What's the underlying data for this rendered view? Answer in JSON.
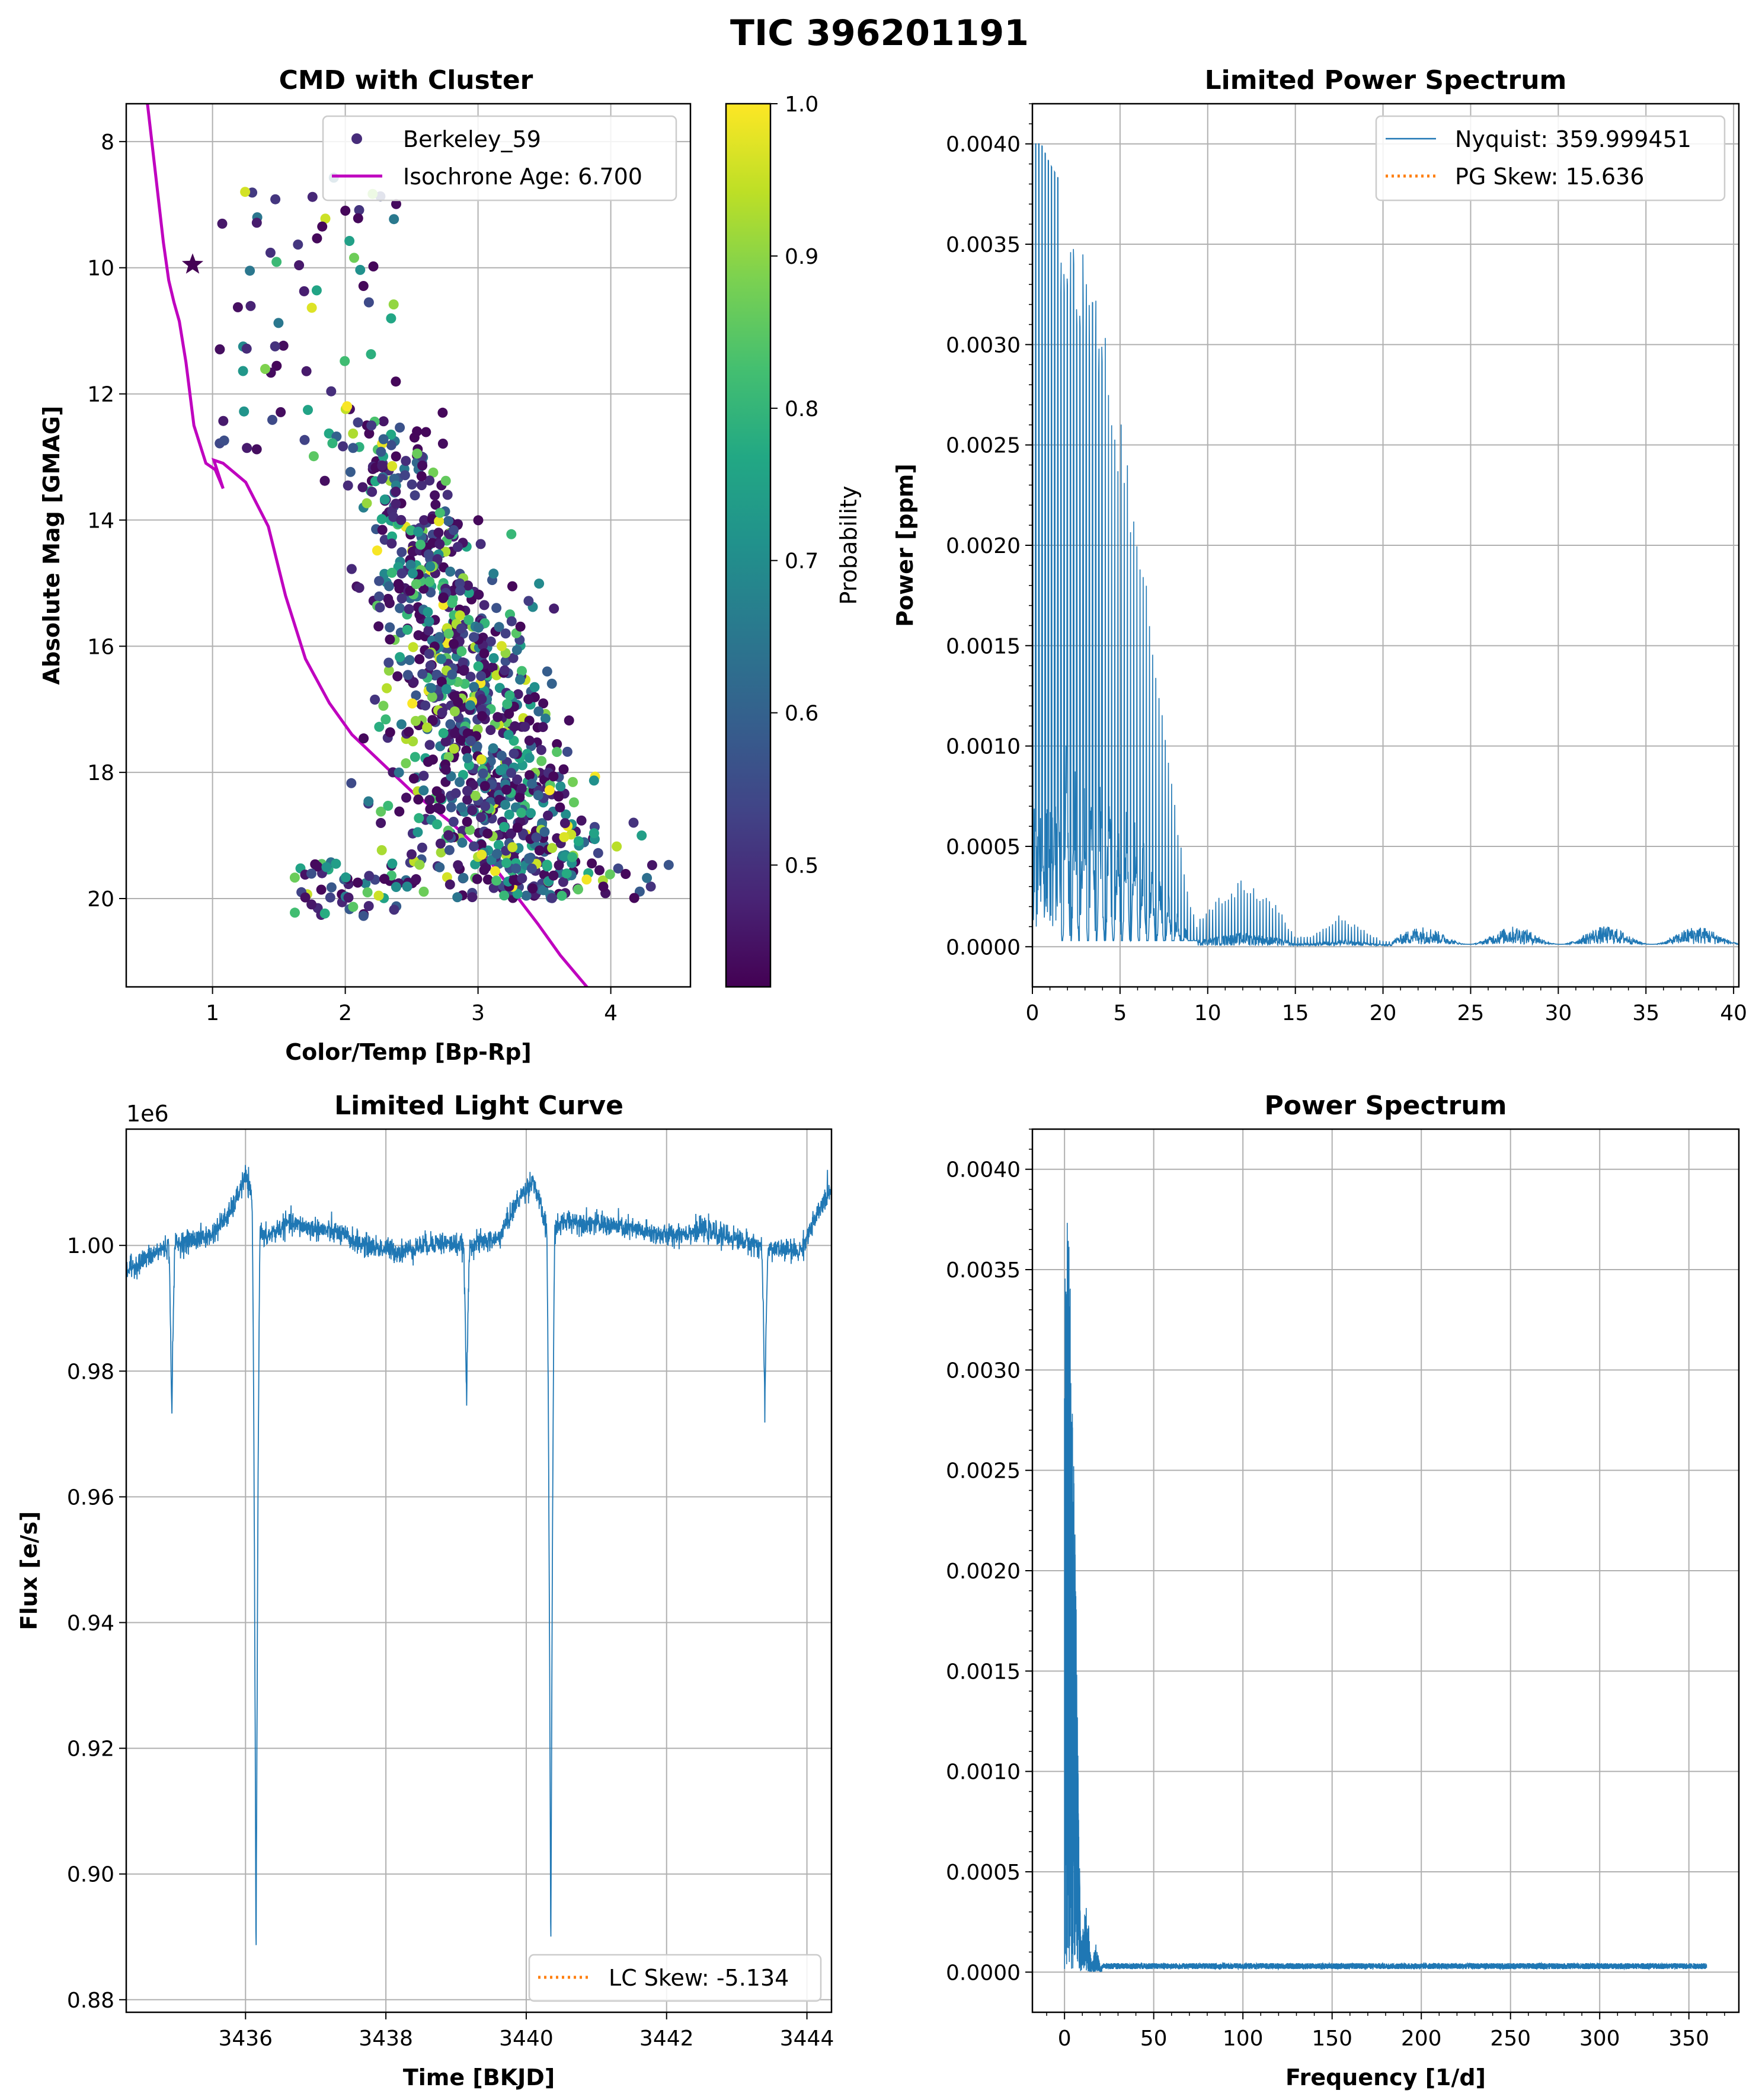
{
  "figure": {
    "title": "TIC 396201191"
  },
  "chart_data": [
    {
      "id": "cmd",
      "type": "scatter",
      "title": "CMD with Cluster",
      "xlabel": "Color/Temp [Bp-Rp]",
      "ylabel": "Absolute Mag [GMAG]",
      "xlim": [
        0.35,
        4.6
      ],
      "ylim": [
        21.4,
        7.4
      ],
      "y_inverted": true,
      "xticks": [
        1,
        2,
        3,
        4
      ],
      "yticks": [
        8,
        10,
        12,
        14,
        16,
        18,
        20
      ],
      "grid": true,
      "legend": {
        "position": "top-right",
        "entries": [
          {
            "label": "Berkeley_59",
            "marker": "dot",
            "color": "#472c7a"
          },
          {
            "label": "Isochrone Age: 6.700",
            "marker": "line",
            "color": "#bf00bf"
          }
        ]
      },
      "colorbar": {
        "label": "Probability",
        "min": 0.42,
        "max": 1.0,
        "ticks": [
          0.5,
          0.6,
          0.7,
          0.8,
          0.9,
          1.0
        ],
        "colormap": "viridis"
      },
      "target_star": {
        "x": 0.85,
        "y": 9.95,
        "marker": "star"
      },
      "isochrone": {
        "x": [
          0.51,
          0.57,
          0.63,
          0.67,
          0.71,
          0.75,
          0.8,
          0.86,
          0.95,
          1.02,
          1.08,
          1.01,
          1.08,
          1.25,
          1.42,
          1.55,
          1.7,
          1.88,
          2.05,
          2.25,
          2.5,
          2.8,
          3.05,
          3.25,
          3.45,
          3.62,
          3.8,
          3.9
        ],
        "y": [
          7.4,
          8.5,
          9.6,
          10.2,
          10.55,
          10.85,
          11.5,
          12.5,
          13.1,
          13.2,
          13.5,
          13.05,
          13.1,
          13.4,
          14.1,
          15.2,
          16.2,
          16.9,
          17.4,
          17.8,
          18.3,
          18.8,
          19.3,
          19.85,
          20.4,
          20.9,
          21.35,
          21.6
        ]
      },
      "n_points": 1100
    },
    {
      "id": "limited_ps",
      "type": "line",
      "title": "Limited Power Spectrum",
      "ylabel": "Power [ppm]",
      "xlim": [
        0,
        40.3
      ],
      "ylim": [
        -0.0002,
        0.0042
      ],
      "xticks": [
        0,
        5,
        10,
        15,
        20,
        25,
        30,
        35,
        40
      ],
      "yticks": [
        0.0,
        0.0005,
        0.001,
        0.0015,
        0.002,
        0.0025,
        0.003,
        0.0035,
        0.004
      ],
      "grid": true,
      "color": "#1f77b4",
      "legend": {
        "position": "top-right",
        "entries": [
          {
            "label": "Nyquist: 359.999451",
            "style": "solid",
            "color": "#1f77b4"
          },
          {
            "label": "PG Skew: 15.636",
            "style": "dotted",
            "color": "#ff7f0e"
          }
        ]
      },
      "peak_envelope": {
        "x": [
          0,
          0.5,
          1,
          2,
          3,
          4,
          5,
          6,
          7,
          8,
          8.8,
          9.4
        ],
        "y": [
          0.004,
          0.004,
          0.0039,
          0.00375,
          0.0035,
          0.0031,
          0.0027,
          0.0022,
          0.0015,
          0.0008,
          0.0003,
          0.0001
        ]
      },
      "bump_envelope": {
        "x": [
          9,
          10,
          12,
          14,
          15,
          16,
          17.5,
          19,
          20
        ],
        "y": [
          0.0001,
          0.0002,
          0.00034,
          0.0002,
          5e-05,
          6e-05,
          0.00016,
          8e-05,
          3e-05
        ]
      }
    },
    {
      "id": "light_curve",
      "type": "line",
      "title": "Limited Light Curve",
      "xlabel": "Time [BKJD]",
      "ylabel": "Flux [e/s]",
      "offset_label": "1e6",
      "xlim": [
        3434.3,
        3444.35
      ],
      "ylim": [
        0.878,
        1.0185
      ],
      "xticks": [
        3436,
        3438,
        3440,
        3442,
        3444
      ],
      "yticks": [
        0.88,
        0.9,
        0.92,
        0.94,
        0.96,
        0.98,
        1.0
      ],
      "grid": true,
      "color": "#1f77b4",
      "legend": {
        "position": "bottom-right",
        "entries": [
          {
            "label": "LC Skew: -5.134",
            "style": "dotted",
            "color": "#ff7f0e"
          }
        ]
      },
      "baseline": {
        "x": [
          3434.3,
          3434.9,
          3435.5,
          3435.8,
          3436.0,
          3436.25,
          3436.6,
          3437.3,
          3437.7,
          3438.2,
          3438.7,
          3439.1,
          3439.6,
          3439.9,
          3440.1,
          3440.3,
          3440.6,
          3441.3,
          3442.0,
          3442.5,
          3443.0,
          3443.5,
          3443.9,
          3444.35
        ],
        "y": [
          0.996,
          1.0,
          1.0015,
          1.0055,
          1.011,
          1.001,
          1.0035,
          1.002,
          1.0,
          0.999,
          1.0005,
          1.0,
          1.001,
          1.0075,
          1.0105,
          1.002,
          1.004,
          1.003,
          1.0015,
          1.0025,
          1.001,
          0.9995,
          0.999,
          1.0095
        ]
      },
      "dips": [
        {
          "t": 3434.95,
          "depth": 0.973,
          "width": 0.05
        },
        {
          "t": 3436.15,
          "depth": 0.8845,
          "width": 0.06
        },
        {
          "t": 3439.15,
          "depth": 0.9745,
          "width": 0.05
        },
        {
          "t": 3440.35,
          "depth": 0.8865,
          "width": 0.06
        },
        {
          "t": 3443.4,
          "depth": 0.9725,
          "width": 0.05
        }
      ]
    },
    {
      "id": "full_ps",
      "type": "line",
      "title": "Power Spectrum",
      "xlabel": "Frequency [1/d]",
      "xlim": [
        -18,
        378
      ],
      "ylim": [
        -0.0002,
        0.0042
      ],
      "xticks": [
        0,
        50,
        100,
        150,
        200,
        250,
        300,
        350
      ],
      "yticks": [
        0.0,
        0.0005,
        0.001,
        0.0015,
        0.002,
        0.0025,
        0.003,
        0.0035,
        0.004
      ],
      "grid": true,
      "color": "#1f77b4",
      "x_max": 360
    }
  ]
}
